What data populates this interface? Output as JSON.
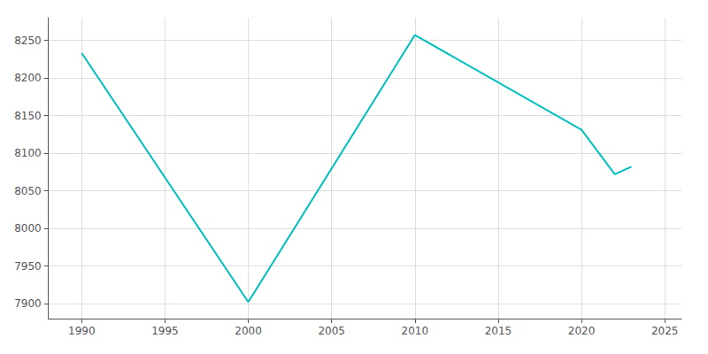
{
  "chart_data": {
    "type": "line",
    "x": [
      1990,
      2000,
      2010,
      2020,
      2022,
      2023
    ],
    "values": [
      8233,
      7902,
      8257,
      8131,
      8072,
      8082
    ],
    "color": "#00BFBF",
    "xlim": [
      1988,
      2026
    ],
    "ylim": [
      7880,
      8280
    ],
    "xticks": [
      1990,
      1995,
      2000,
      2005,
      2010,
      2015,
      2020,
      2025
    ],
    "yticks": [
      7900,
      7950,
      8000,
      8050,
      8100,
      8150,
      8200,
      8250
    ],
    "grid": true
  }
}
